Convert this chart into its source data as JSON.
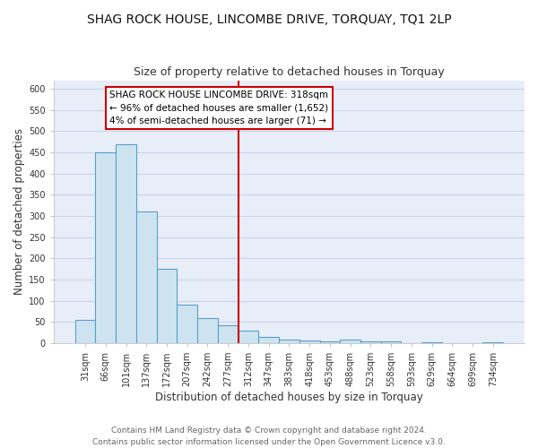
{
  "title": "SHAG ROCK HOUSE, LINCOMBE DRIVE, TORQUAY, TQ1 2LP",
  "subtitle": "Size of property relative to detached houses in Torquay",
  "xlabel": "Distribution of detached houses by size in Torquay",
  "ylabel": "Number of detached properties",
  "bar_color": "#cde4f0",
  "bar_edge_color": "#5b9ec9",
  "categories": [
    "31sqm",
    "66sqm",
    "101sqm",
    "137sqm",
    "172sqm",
    "207sqm",
    "242sqm",
    "277sqm",
    "312sqm",
    "347sqm",
    "383sqm",
    "418sqm",
    "453sqm",
    "488sqm",
    "523sqm",
    "558sqm",
    "593sqm",
    "629sqm",
    "664sqm",
    "699sqm",
    "734sqm"
  ],
  "values": [
    55,
    450,
    470,
    310,
    175,
    90,
    58,
    42,
    30,
    15,
    8,
    7,
    5,
    8,
    5,
    3,
    0,
    2,
    0,
    0,
    2
  ],
  "vline_x_index": 8,
  "vline_color": "#cc0000",
  "annotation_title": "SHAG ROCK HOUSE LINCOMBE DRIVE: 318sqm",
  "annotation_line1": "← 96% of detached houses are smaller (1,652)",
  "annotation_line2": "4% of semi-detached houses are larger (71) →",
  "annotation_box_facecolor": "#ffffff",
  "annotation_box_edgecolor": "#cc0000",
  "ylim": [
    0,
    620
  ],
  "yticks": [
    0,
    50,
    100,
    150,
    200,
    250,
    300,
    350,
    400,
    450,
    500,
    550,
    600
  ],
  "footer1": "Contains HM Land Registry data © Crown copyright and database right 2024.",
  "footer2": "Contains public sector information licensed under the Open Government Licence v3.0.",
  "fig_facecolor": "#ffffff",
  "plot_facecolor": "#e8eef8",
  "grid_color": "#c8d4e8",
  "title_fontsize": 10,
  "subtitle_fontsize": 9,
  "axis_label_fontsize": 8.5,
  "tick_fontsize": 7,
  "footer_fontsize": 6.5,
  "annotation_fontsize": 7.5
}
